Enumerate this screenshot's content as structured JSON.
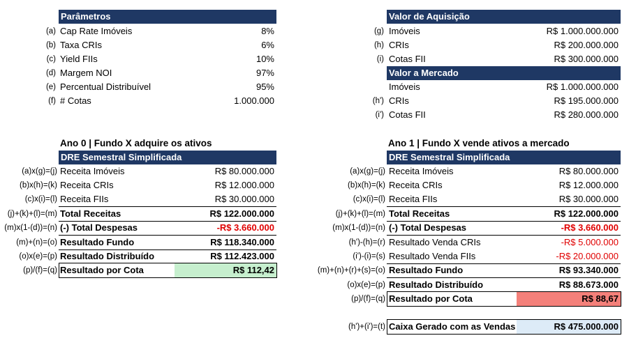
{
  "params": {
    "header": "Parâmetros",
    "rows": [
      {
        "code": "(a)",
        "label": "Cap Rate Imóveis",
        "value": "8%"
      },
      {
        "code": "(b)",
        "label": "Taxa CRIs",
        "value": "6%"
      },
      {
        "code": "(c)",
        "label": "Yield FIIs",
        "value": "10%"
      },
      {
        "code": "(d)",
        "label": "Margem NOI",
        "value": "97%"
      },
      {
        "code": "(e)",
        "label": "Percentual Distribuível",
        "value": "95%"
      },
      {
        "code": "(f)",
        "label": "# Cotas",
        "value": "1.000.000"
      }
    ]
  },
  "aquisicao": {
    "header": "Valor de Aquisição",
    "rows": [
      {
        "code": "(g)",
        "label": "Imóveis",
        "value": "R$ 1.000.000.000"
      },
      {
        "code": "(h)",
        "label": "CRIs",
        "value": "R$ 200.000.000"
      },
      {
        "code": "(i)",
        "label": "Cotas FII",
        "value": "R$ 300.000.000"
      }
    ]
  },
  "mercado": {
    "header": "Valor a Mercado",
    "rows": [
      {
        "code": "",
        "label": "Imóveis",
        "value": "R$ 1.000.000.000"
      },
      {
        "code": "(h')",
        "label": "CRIs",
        "value": "R$ 195.000.000"
      },
      {
        "code": "(i')",
        "label": "Cotas FII",
        "value": "R$ 280.000.000"
      }
    ]
  },
  "ano0": {
    "title": "Ano 0 | Fundo X adquire os ativos",
    "header": "DRE Semestral Simplificada",
    "rows": [
      {
        "code": "(a)x(g)=(j)",
        "label": "Receita Imóveis",
        "value": "R$ 80.000.000"
      },
      {
        "code": "(b)x(h)=(k)",
        "label": "Receita CRIs",
        "value": "R$ 12.000.000"
      },
      {
        "code": "(c)x(i)=(l)",
        "label": "Receita FIIs",
        "value": "R$ 30.000.000"
      },
      {
        "code": "(j)+(k)+(l)=(m)",
        "label": "Total Receitas",
        "value": "R$ 122.000.000"
      },
      {
        "code": "(m)x(1-(d))=(n)",
        "label": "(-) Total Despesas",
        "value": "-R$ 3.660.000"
      },
      {
        "code": "(m)+(n)=(o)",
        "label": "Resultado Fundo",
        "value": "R$ 118.340.000"
      },
      {
        "code": "(o)x(e)=(p)",
        "label": "Resultado Distribuído",
        "value": "R$ 112.423.000"
      },
      {
        "code": "(p)/(f)=(q)",
        "label": "Resultado por Cota",
        "value": "R$ 112,42"
      }
    ]
  },
  "ano1": {
    "title": "Ano 1 | Fundo X vende ativos a mercado",
    "header": "DRE Semestral Simplificada",
    "rows": [
      {
        "code": "(a)x(g)=(j)",
        "label": "Receita Imóveis",
        "value": "R$ 80.000.000"
      },
      {
        "code": "(b)x(h)=(k)",
        "label": "Receita CRIs",
        "value": "R$ 12.000.000"
      },
      {
        "code": "(c)x(i)=(l)",
        "label": "Receita FIIs",
        "value": "R$ 30.000.000"
      },
      {
        "code": "(j)+(k)+(l)=(m)",
        "label": "Total Receitas",
        "value": "R$ 122.000.000"
      },
      {
        "code": "(m)x(1-(d))=(n)",
        "label": "(-) Total Despesas",
        "value": "-R$ 3.660.000"
      },
      {
        "code": "(h')-(h)=(r)",
        "label": "Resultado Venda CRIs",
        "value": "-R$ 5.000.000"
      },
      {
        "code": "(i')-(i)=(s)",
        "label": "Resultado Venda FIIs",
        "value": "-R$ 20.000.000"
      },
      {
        "code": "(m)+(n)+(r)+(s)=(o)",
        "label": "Resultado Fundo",
        "value": "R$ 93.340.000"
      },
      {
        "code": "(o)x(e)=(p)",
        "label": "Resultado Distribuído",
        "value": "R$ 88.673.000"
      },
      {
        "code": "(p)/(f)=(q)",
        "label": "Resultado por Cota",
        "value": "R$ 88,67"
      }
    ],
    "caixa": {
      "code": "(h')+(i')=(t)",
      "label": "Caixa Gerado com as Vendas",
      "value": "R$ 475.000.000"
    }
  },
  "colors": {
    "header_bg": "#1f3864",
    "negative": "#e00000",
    "green_fill": "#c6efce",
    "red_fill": "#f4807a",
    "blue_fill": "#ddebf7"
  }
}
